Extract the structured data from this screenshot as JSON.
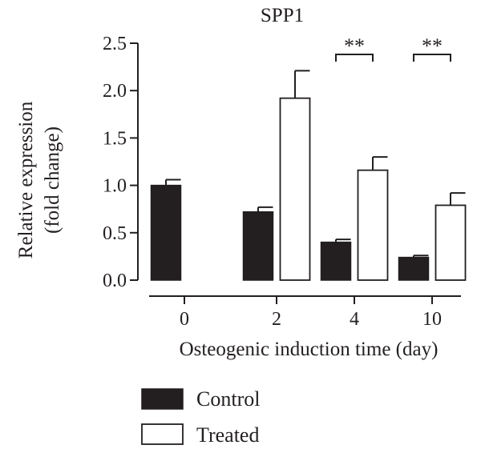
{
  "chart_data": {
    "type": "bar",
    "title": "SPP1",
    "xlabel": "Osteogenic induction time (day)",
    "ylabel": [
      "Relative expression",
      "(fold change)"
    ],
    "categories": [
      "0",
      "2",
      "4",
      "10"
    ],
    "ylim": [
      0,
      2.5
    ],
    "yticks": [
      "0.0",
      "0.5",
      "1.0",
      "1.5",
      "2.0",
      "2.5"
    ],
    "series": [
      {
        "name": "Control",
        "values": [
          1.0,
          0.72,
          0.4,
          0.24
        ],
        "errors": [
          0.06,
          0.05,
          0.03,
          0.02
        ]
      },
      {
        "name": "Treated",
        "values": [
          null,
          1.92,
          1.16,
          0.79
        ],
        "errors": [
          null,
          0.29,
          0.14,
          0.13
        ]
      }
    ],
    "annotations": [
      {
        "category": "4",
        "text": "**"
      },
      {
        "category": "10",
        "text": "**"
      }
    ],
    "legend_position": "bottom-left",
    "grid": false
  },
  "colors": {
    "control": "#231f20",
    "treated": "#ffffff",
    "axis": "#231f20"
  }
}
